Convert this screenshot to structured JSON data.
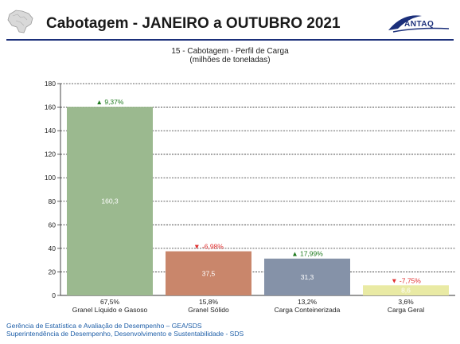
{
  "header": {
    "title": "Cabotagem - JANEIRO a OUTUBRO 2021",
    "brand": "ANTAQ"
  },
  "chart_data": {
    "type": "bar",
    "title": "15 - Cabotagem - Perfil de Carga",
    "subtitle": "(milhões de toneladas)",
    "categories": [
      "Granel Líquido e Gasoso",
      "Granel Sólido",
      "Carga Conteinerizada",
      "Carga Geral"
    ],
    "values": [
      160.3,
      37.5,
      31.3,
      8.6
    ],
    "value_labels": [
      "160,3",
      "37,5",
      "31,3",
      "8,6"
    ],
    "shares": [
      "67,5%",
      "15,8%",
      "13,2%",
      "3,6%"
    ],
    "changes": [
      "9,37%",
      "-6,98%",
      "17,99%",
      "-7,75%"
    ],
    "change_directions": [
      "up",
      "down",
      "up",
      "down"
    ],
    "colors": [
      "#9bb98f",
      "#c9866b",
      "#8592a8",
      "#e9eaa4"
    ],
    "up_color": "#1e7a1e",
    "down_color": "#e03030",
    "ylim": [
      0,
      180
    ],
    "yticks": [
      0,
      20,
      40,
      60,
      80,
      100,
      120,
      140,
      160,
      180
    ],
    "grid": true
  },
  "footer": {
    "line1": "Gerência de Estatística e Avaliação de Desempenho – GEA/SDS",
    "line2": "Superintendência de Desempenho, Desenvolvimento e Sustentabilidade - SDS"
  }
}
